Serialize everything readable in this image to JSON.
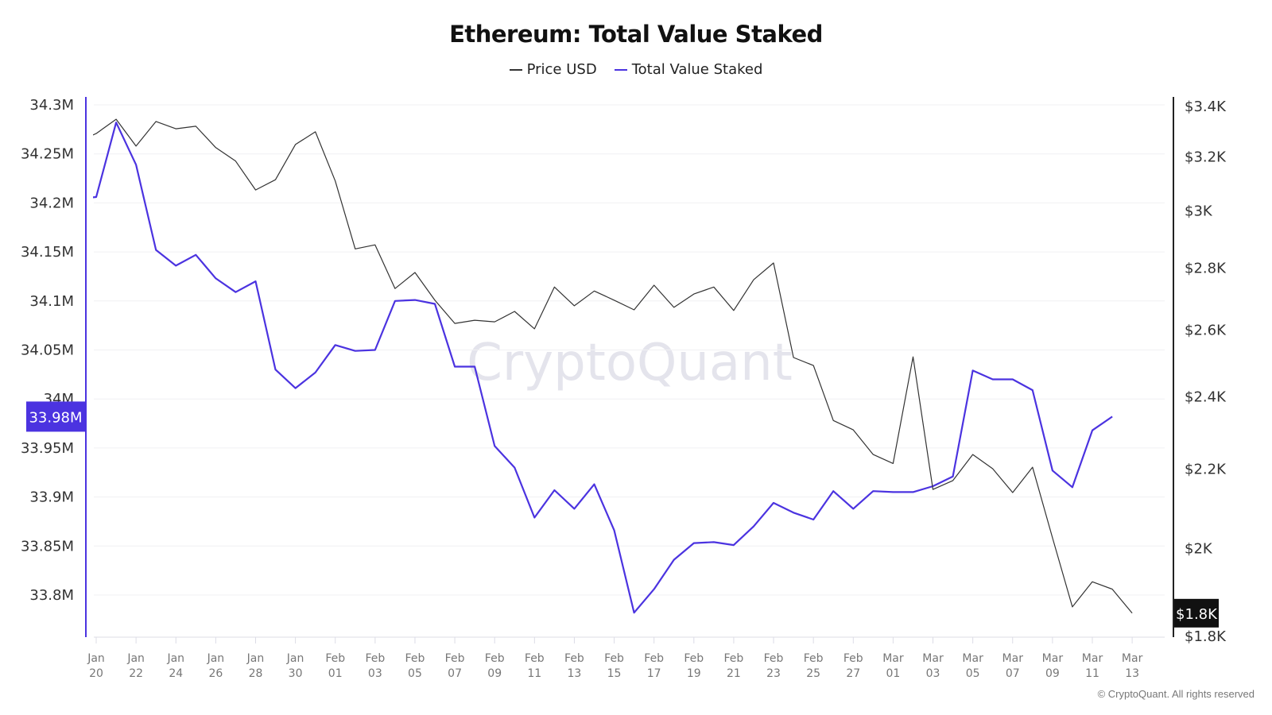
{
  "title": "Ethereum: Total Value Staked",
  "legend": [
    {
      "label": "Price USD",
      "color": "#333333"
    },
    {
      "label": "Total Value Staked",
      "color": "#4b33e0"
    }
  ],
  "watermark": "CryptoQuant",
  "copyright": "© CryptoQuant. All rights reserved",
  "chart_data": {
    "type": "line",
    "title": "Ethereum: Total Value Staked",
    "x": [
      "Jan 19",
      "Jan 20",
      "Jan 21",
      "Jan 22",
      "Jan 23",
      "Jan 24",
      "Jan 25",
      "Jan 26",
      "Jan 27",
      "Jan 28",
      "Jan 29",
      "Jan 30",
      "Jan 31",
      "Feb 01",
      "Feb 02",
      "Feb 03",
      "Feb 04",
      "Feb 05",
      "Feb 06",
      "Feb 07",
      "Feb 08",
      "Feb 09",
      "Feb 10",
      "Feb 11",
      "Feb 12",
      "Feb 13",
      "Feb 14",
      "Feb 15",
      "Feb 16",
      "Feb 17",
      "Feb 18",
      "Feb 19",
      "Feb 20",
      "Feb 21",
      "Feb 22",
      "Feb 23",
      "Feb 24",
      "Feb 25",
      "Feb 26",
      "Feb 27",
      "Feb 28",
      "Mar 01",
      "Mar 02",
      "Mar 03",
      "Mar 04",
      "Mar 05",
      "Mar 06",
      "Mar 07",
      "Mar 08",
      "Mar 09",
      "Mar 10",
      "Mar 11",
      "Mar 12",
      "Mar 13"
    ],
    "x_tick_labels": [
      [
        "Jan",
        "20"
      ],
      [
        "Jan",
        "22"
      ],
      [
        "Jan",
        "24"
      ],
      [
        "Jan",
        "26"
      ],
      [
        "Jan",
        "28"
      ],
      [
        "Jan",
        "30"
      ],
      [
        "Feb",
        "01"
      ],
      [
        "Feb",
        "03"
      ],
      [
        "Feb",
        "05"
      ],
      [
        "Feb",
        "07"
      ],
      [
        "Feb",
        "09"
      ],
      [
        "Feb",
        "11"
      ],
      [
        "Feb",
        "13"
      ],
      [
        "Feb",
        "15"
      ],
      [
        "Feb",
        "17"
      ],
      [
        "Feb",
        "19"
      ],
      [
        "Feb",
        "21"
      ],
      [
        "Feb",
        "23"
      ],
      [
        "Feb",
        "25"
      ],
      [
        "Feb",
        "27"
      ],
      [
        "Mar",
        "01"
      ],
      [
        "Mar",
        "03"
      ],
      [
        "Mar",
        "05"
      ],
      [
        "Mar",
        "07"
      ],
      [
        "Mar",
        "09"
      ],
      [
        "Mar",
        "11"
      ],
      [
        "Mar",
        "13"
      ]
    ],
    "series": [
      {
        "name": "Total Value Staked",
        "axis": "left",
        "color": "#4b33e0",
        "values": [
          34.204,
          34.206,
          34.282,
          34.239,
          34.152,
          34.136,
          34.147,
          34.123,
          34.109,
          34.12,
          34.03,
          34.011,
          34.027,
          34.055,
          34.049,
          34.05,
          34.1,
          34.101,
          34.097,
          34.033,
          34.033,
          33.952,
          33.93,
          33.879,
          33.907,
          33.888,
          33.913,
          33.866,
          33.782,
          33.806,
          33.836,
          33.853,
          33.854,
          33.851,
          33.87,
          33.894,
          33.884,
          33.877,
          33.906,
          33.888,
          33.906,
          33.905,
          33.905,
          33.911,
          33.921,
          34.029,
          34.02,
          34.02,
          34.009,
          33.927,
          33.91,
          33.968,
          33.982,
          null
        ]
      },
      {
        "name": "Price USD",
        "axis": "right",
        "color": "#333333",
        "values": [
          3253,
          3288,
          3345,
          3239,
          3336,
          3307,
          3317,
          3233,
          3181,
          3073,
          3111,
          3245,
          3295,
          3106,
          2863,
          2877,
          2730,
          2783,
          2692,
          2618,
          2628,
          2623,
          2656,
          2601,
          2735,
          2674,
          2722,
          2692,
          2661,
          2741,
          2669,
          2712,
          2735,
          2659,
          2759,
          2815,
          2513,
          2489,
          2330,
          2304,
          2237,
          2213,
          2515,
          2145,
          2168,
          2237,
          2199,
          2137,
          2203,
          2024,
          1863,
          1920,
          1903,
          1849
        ]
      }
    ],
    "left_axis": {
      "unit": "M",
      "ticks": [
        "34.3M",
        "34.25M",
        "34.2M",
        "34.15M",
        "34.1M",
        "34.05M",
        "34M",
        "33.95M",
        "33.9M",
        "33.85M",
        "33.8M"
      ],
      "tick_values": [
        34.3,
        34.25,
        34.2,
        34.15,
        34.1,
        34.05,
        34.0,
        33.95,
        33.9,
        33.85,
        33.8
      ],
      "range": [
        33.756,
        34.3
      ],
      "current_label": "33.98M",
      "current_value": 33.982
    },
    "right_axis": {
      "scale": "log",
      "ticks": [
        "$3.4K",
        "$3.2K",
        "$3K",
        "$2.8K",
        "$2.6K",
        "$2.4K",
        "$2.2K",
        "$2K",
        "$1.8K"
      ],
      "tick_values": [
        3400,
        3200,
        3000,
        2800,
        2600,
        2400,
        2200,
        2000,
        1800
      ],
      "range": [
        1800,
        3400
      ],
      "current_label": "$1.8K",
      "current_value": 1849
    },
    "grid": true,
    "legend_position": "top-center"
  }
}
